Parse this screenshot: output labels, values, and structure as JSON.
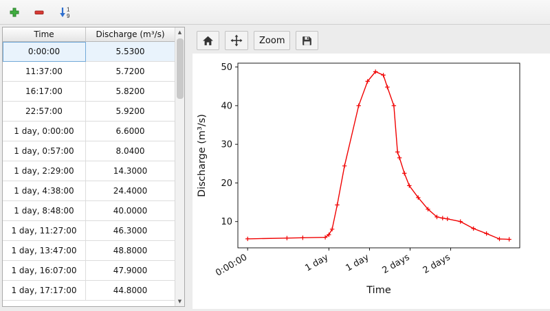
{
  "main_toolbar": {
    "add_tooltip": "Add row",
    "remove_tooltip": "Remove row",
    "sort_tooltip": "Sort rows"
  },
  "table": {
    "columns": [
      "Time",
      "Discharge (m³/s)"
    ],
    "selected_row": 0,
    "rows": [
      {
        "time": "0:00:00",
        "discharge": "5.5300"
      },
      {
        "time": "11:37:00",
        "discharge": "5.7200"
      },
      {
        "time": "16:17:00",
        "discharge": "5.8200"
      },
      {
        "time": "22:57:00",
        "discharge": "5.9200"
      },
      {
        "time": "1 day, 0:00:00",
        "discharge": "6.6000"
      },
      {
        "time": "1 day, 0:57:00",
        "discharge": "8.0400"
      },
      {
        "time": "1 day, 2:29:00",
        "discharge": "14.3000"
      },
      {
        "time": "1 day, 4:38:00",
        "discharge": "24.4000"
      },
      {
        "time": "1 day, 8:48:00",
        "discharge": "40.0000"
      },
      {
        "time": "1 day, 11:27:00",
        "discharge": "46.3000"
      },
      {
        "time": "1 day, 13:47:00",
        "discharge": "48.8000"
      },
      {
        "time": "1 day, 16:07:00",
        "discharge": "47.9000"
      },
      {
        "time": "1 day, 17:17:00",
        "discharge": "44.8000"
      }
    ]
  },
  "chart_toolbar": {
    "zoom_label": "Zoom"
  },
  "chart_data": {
    "type": "line",
    "title": "",
    "xlabel": "Time",
    "ylabel": "Discharge (m³/s)",
    "line_color": "#f00000",
    "marker": "+",
    "legend": "none",
    "grid": false,
    "xlim": [
      -0.12,
      3.35
    ],
    "ylim": [
      3.2,
      51
    ],
    "yticks": [
      10,
      20,
      30,
      40,
      50
    ],
    "xticks": [
      {
        "value": 0,
        "label": "0:00:00"
      },
      {
        "value": 1,
        "label": "1 day"
      },
      {
        "value": 1.5,
        "label": "1 day"
      },
      {
        "value": 2,
        "label": "2 days"
      },
      {
        "value": 2.5,
        "label": "2 days"
      }
    ],
    "x_days": [
      0,
      0.484,
      0.679,
      0.956,
      1.0,
      1.04,
      1.103,
      1.193,
      1.367,
      1.477,
      1.574,
      1.671,
      1.72,
      1.8,
      1.845,
      1.87,
      1.93,
      1.99,
      2.1,
      2.22,
      2.33,
      2.4,
      2.46,
      2.62,
      2.78,
      2.94,
      3.1,
      3.22
    ],
    "values": [
      5.53,
      5.72,
      5.82,
      5.92,
      6.6,
      8.04,
      14.3,
      24.4,
      40.0,
      46.3,
      48.8,
      47.9,
      44.8,
      40.0,
      28.0,
      26.5,
      22.5,
      19.3,
      16.2,
      13.2,
      11.2,
      10.9,
      10.7,
      10.0,
      8.2,
      6.9,
      5.5,
      5.4
    ]
  }
}
